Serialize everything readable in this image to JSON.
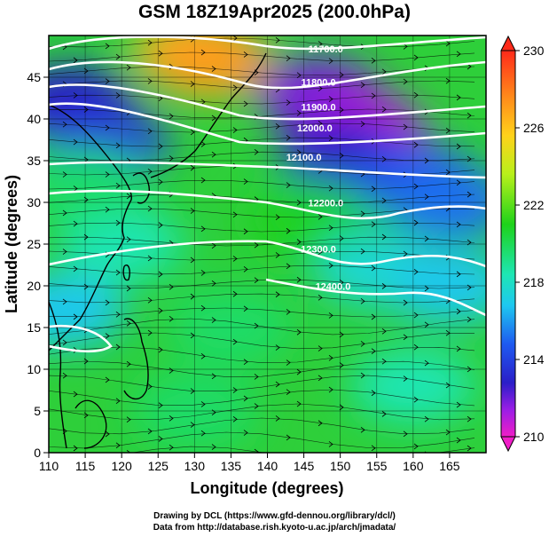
{
  "title": "GSM 18Z19Apr2025 (200.0hPa)",
  "xlabel": "Longitude (degrees)",
  "ylabel": "Latitude  (degrees)",
  "x_ticks": [
    "110",
    "115",
    "120",
    "125",
    "130",
    "135",
    "140",
    "145",
    "150",
    "155",
    "160",
    "165"
  ],
  "y_ticks": [
    "0",
    "5",
    "10",
    "15",
    "20",
    "25",
    "30",
    "35",
    "40",
    "45"
  ],
  "colorbar_ticks": [
    "230",
    "226",
    "222",
    "218",
    "214",
    "210"
  ],
  "contour_labels": [
    "11700.0",
    "11800.0",
    "11900.0",
    "12000.0",
    "12100.0",
    "12200.0",
    "12300.0",
    "12400.0"
  ],
  "credits": {
    "line1": "Drawing by DCL (https://www.gfd-dennou.org/library/dcl/)",
    "line2": "Data from http://database.rish.kyoto-u.ac.jp/arch/jmadata/"
  },
  "chart_data": {
    "type": "heatmap",
    "title": "GSM 18Z19Apr2025 (200.0hPa)",
    "xlabel": "Longitude (degrees)",
    "ylabel": "Latitude  (degrees)",
    "xlim": [
      110,
      170
    ],
    "ylim": [
      0,
      50
    ],
    "colorbar_range": [
      210,
      230
    ],
    "colorbar_ticks": [
      210,
      214,
      218,
      222,
      226,
      230
    ],
    "overlays": [
      "geopotential height contours",
      "wind streamlines",
      "coastlines"
    ],
    "contours": [
      {
        "label": "11700.0",
        "lon": 148,
        "lat": 48
      },
      {
        "label": "11800.0",
        "lon": 147,
        "lat": 44
      },
      {
        "label": "11900.0",
        "lon": 147,
        "lat": 41
      },
      {
        "label": "12000.0",
        "lon": 146.5,
        "lat": 38.5
      },
      {
        "label": "12100.0",
        "lon": 145,
        "lat": 35
      },
      {
        "label": "12200.0",
        "lon": 148,
        "lat": 29.5
      },
      {
        "label": "12300.0",
        "lon": 147,
        "lat": 24
      },
      {
        "label": "12400.0",
        "lon": 149,
        "lat": 19.5
      }
    ],
    "field_blobs": [
      {
        "lon": 130,
        "lat": 48,
        "value": 227
      },
      {
        "lon": 132,
        "lat": 47,
        "value": 228
      },
      {
        "lon": 113,
        "lat": 42,
        "value": 213
      },
      {
        "lon": 118,
        "lat": 37,
        "value": 214
      },
      {
        "lon": 147,
        "lat": 43,
        "value": 212
      },
      {
        "lon": 153,
        "lat": 39,
        "value": 211
      },
      {
        "lon": 150,
        "lat": 36,
        "value": 213
      },
      {
        "lon": 160,
        "lat": 33,
        "value": 215
      },
      {
        "lon": 165,
        "lat": 30,
        "value": 216
      },
      {
        "lon": 146,
        "lat": 28,
        "value": 222
      },
      {
        "lon": 120,
        "lat": 25,
        "value": 220
      },
      {
        "lon": 115,
        "lat": 32,
        "value": 221
      },
      {
        "lon": 135,
        "lat": 15,
        "value": 221
      },
      {
        "lon": 155,
        "lat": 22,
        "value": 219
      },
      {
        "lon": 165,
        "lat": 20,
        "value": 218
      },
      {
        "lon": 130,
        "lat": 5,
        "value": 221
      },
      {
        "lon": 160,
        "lat": 8,
        "value": 220
      },
      {
        "lon": 112,
        "lat": 17,
        "value": 218
      }
    ]
  }
}
